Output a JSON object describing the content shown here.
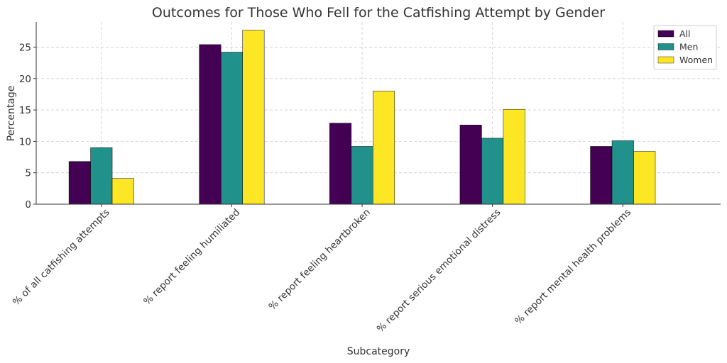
{
  "chart_data": {
    "type": "bar",
    "title": "Outcomes for Those Who Fell for the Catfishing Attempt by Gender",
    "xlabel": "Subcategory",
    "ylabel": "Percentage",
    "categories": [
      "% of all catfishing attempts",
      "% report feeling humiliated",
      "% report feeling heartbroken",
      "% report serious emotional distress",
      "% report mental health problems"
    ],
    "series": [
      {
        "name": "All",
        "color": "#440154",
        "values": [
          6.8,
          25.4,
          12.9,
          12.6,
          9.2
        ]
      },
      {
        "name": "Men",
        "color": "#21918c",
        "values": [
          9.0,
          24.2,
          9.2,
          10.5,
          10.1
        ]
      },
      {
        "name": "Women",
        "color": "#fde725",
        "values": [
          4.1,
          27.7,
          18.0,
          15.1,
          8.4
        ]
      }
    ],
    "yticks": [
      0,
      5,
      10,
      15,
      20,
      25
    ],
    "ylim": [
      0,
      29
    ],
    "grid": true,
    "legend": "top-right"
  }
}
